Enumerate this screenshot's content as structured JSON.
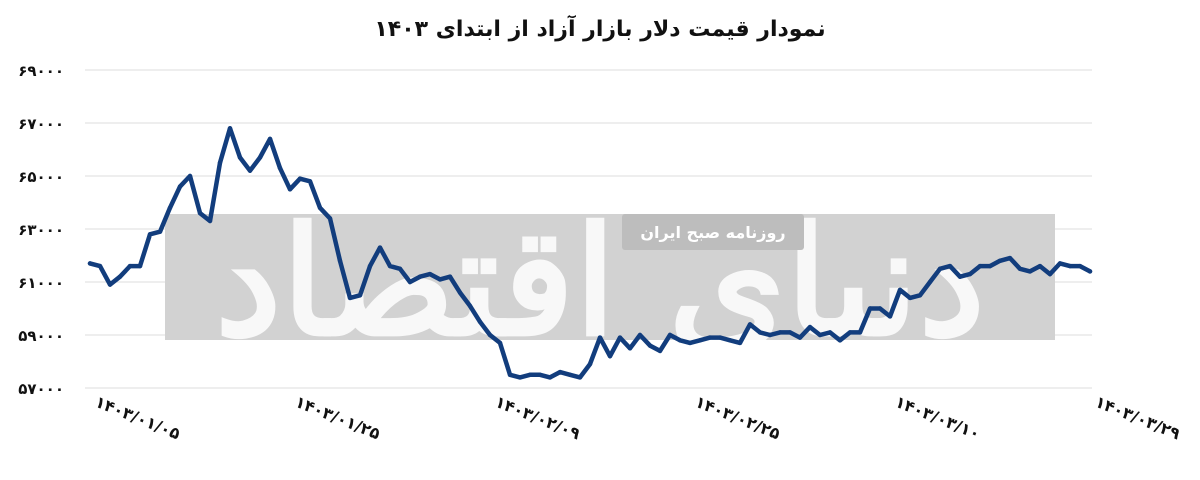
{
  "chart_data": {
    "type": "line",
    "title": "نمودار قیمت دلار بازار آزاد از ابتدای ۱۴۰۳",
    "xlabel": "",
    "ylabel": "",
    "ylim": [
      57000,
      69000
    ],
    "yticks": [
      57000,
      59000,
      61000,
      63000,
      65000,
      67000,
      69000
    ],
    "ytick_labels": [
      "۵۷۰۰۰",
      "۵۹۰۰۰",
      "۶۱۰۰۰",
      "۶۳۰۰۰",
      "۶۵۰۰۰",
      "۶۷۰۰۰",
      "۶۹۰۰۰"
    ],
    "x_tick_labels": [
      "۱۴۰۳/۰۱/۰۵",
      "۱۴۰۳/۰۱/۲۵",
      "۱۴۰۳/۰۲/۰۹",
      "۱۴۰۳/۰۲/۲۵",
      "۱۴۰۳/۰۳/۱۰",
      "۱۴۰۳/۰۳/۲۹"
    ],
    "x_tick_index": [
      0,
      20,
      40,
      60,
      80,
      100
    ],
    "grid": true,
    "legend": "none",
    "color": "#123d7d",
    "series": [
      {
        "values": [
          61700,
          61600,
          60900,
          61200,
          61600,
          61600,
          62800,
          62900,
          63800,
          64600,
          65000,
          63600,
          63300,
          65500,
          66800,
          65700,
          65200,
          65700,
          66400,
          65300,
          64500,
          64900,
          64800,
          63800,
          63400,
          61800,
          60400,
          60500,
          61600,
          62300,
          61600,
          61500,
          61000,
          61200,
          61300,
          61100,
          61200,
          60600,
          60100,
          59500,
          59000,
          58700,
          57500,
          57400,
          57500,
          57500,
          57400,
          57600,
          57500,
          57400,
          57900,
          58900,
          58200,
          58900,
          58500,
          59000,
          58600,
          58400,
          59000,
          58800,
          58700,
          58800,
          58900,
          58900,
          58800,
          58700,
          59400,
          59100,
          59000,
          59100,
          59100,
          58900,
          59300,
          59000,
          59100,
          58800,
          59100,
          59100,
          60000,
          60000,
          59700,
          60700,
          60400,
          60500,
          61000,
          61500,
          61600,
          61200,
          61300,
          61600,
          61600,
          61800,
          61900,
          61500,
          61400,
          61600,
          61300,
          61700,
          61600,
          61600,
          61400
        ]
      }
    ]
  },
  "watermark": {
    "label": "روزنامه صبح ایران",
    "big_text": "دنیای اقتصاد"
  }
}
